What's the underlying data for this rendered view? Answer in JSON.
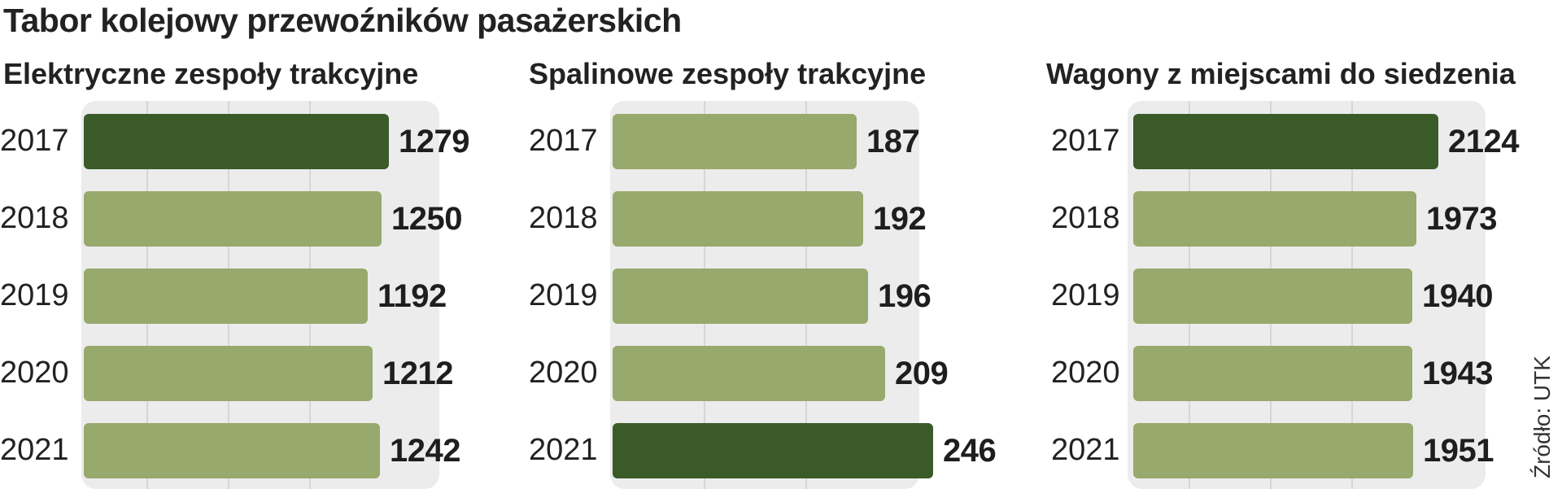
{
  "title": "Tabor kolejowy przewoźników pasażerskich",
  "source": "Źródło: UTK",
  "colors": {
    "normal": "#97a96c",
    "highlight": "#3a5a28",
    "plot_bg": "#ececec"
  },
  "chart_data": [
    {
      "type": "bar",
      "orientation": "horizontal",
      "title": "Elektryczne zespoły trakcyjne",
      "categories": [
        "2017",
        "2018",
        "2019",
        "2020",
        "2021"
      ],
      "values": [
        1279,
        1250,
        1192,
        1212,
        1242
      ],
      "labels": [
        "1279",
        "1250",
        "1192",
        "1212",
        "1242"
      ],
      "highlight_index": 0,
      "xlim": [
        0,
        1279
      ]
    },
    {
      "type": "bar",
      "orientation": "horizontal",
      "title": "Spalinowe zespoły trakcyjne",
      "categories": [
        "2017",
        "2018",
        "2019",
        "2020",
        "2021"
      ],
      "values": [
        187,
        192,
        196,
        209,
        246
      ],
      "labels": [
        "187",
        "192",
        "196",
        "209",
        "246"
      ],
      "highlight_index": 4,
      "xlim": [
        0,
        246
      ]
    },
    {
      "type": "bar",
      "orientation": "horizontal",
      "title": "Wagony z miejscami do siedzenia",
      "categories": [
        "2017",
        "2018",
        "2019",
        "2020",
        "2021"
      ],
      "values": [
        2124,
        1973,
        1940,
        1943,
        1951
      ],
      "labels": [
        "2124",
        "1973",
        "1940",
        "1943",
        "1951"
      ],
      "highlight_index": 0,
      "xlim": [
        0,
        2124
      ]
    }
  ]
}
